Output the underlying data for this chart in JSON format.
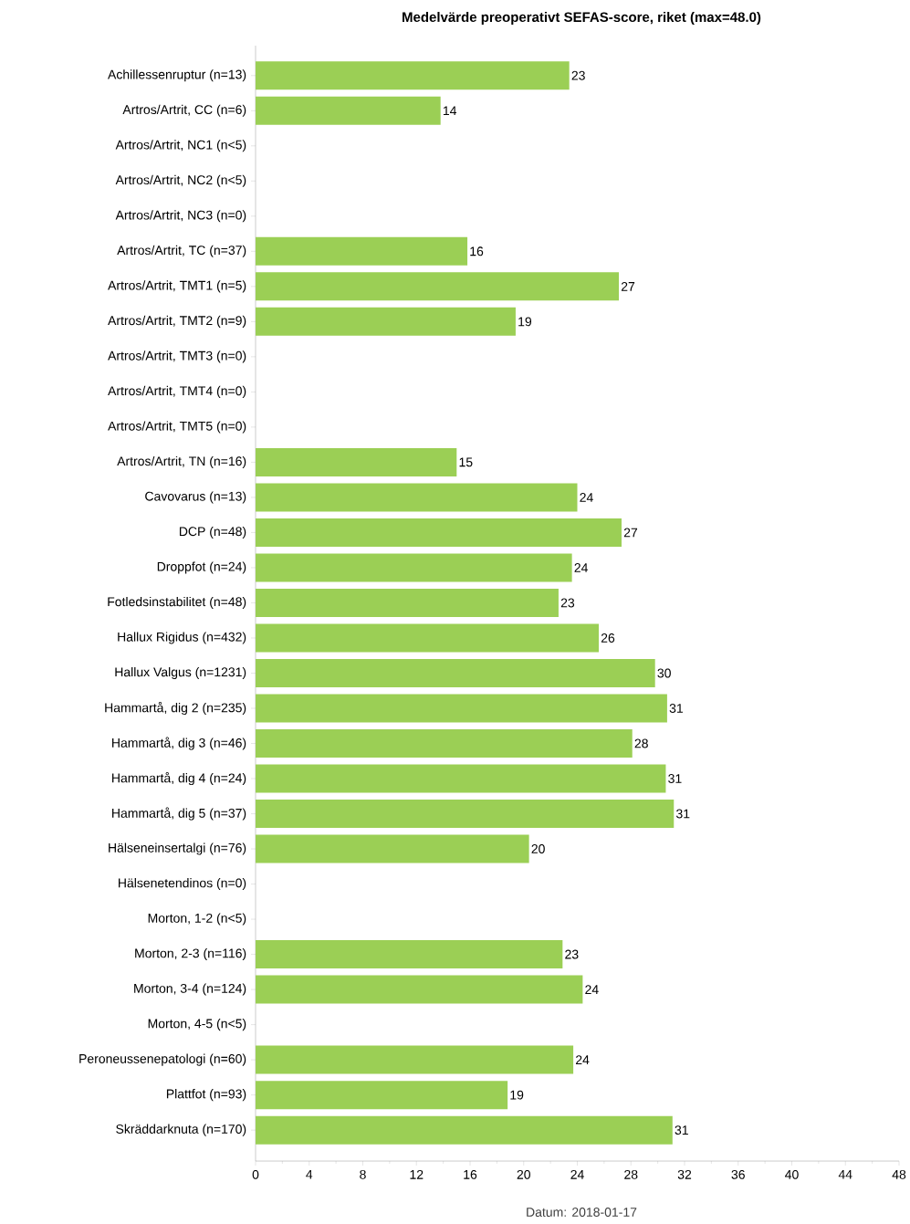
{
  "chart_data": {
    "type": "bar",
    "orientation": "horizontal",
    "title": "Medelvärde preoperativt SEFAS-score, riket (max=48.0)",
    "categories": [
      "Achillessenruptur (n=13)",
      "Artros/Artrit, CC (n=6)",
      "Artros/Artrit, NC1 (n<5)",
      "Artros/Artrit, NC2 (n<5)",
      "Artros/Artrit, NC3 (n=0)",
      "Artros/Artrit, TC (n=37)",
      "Artros/Artrit, TMT1 (n=5)",
      "Artros/Artrit, TMT2 (n=9)",
      "Artros/Artrit, TMT3 (n=0)",
      "Artros/Artrit, TMT4 (n=0)",
      "Artros/Artrit, TMT5 (n=0)",
      "Artros/Artrit, TN (n=16)",
      "Cavovarus (n=13)",
      "DCP (n=48)",
      "Droppfot (n=24)",
      "Fotledsinstabilitet (n=48)",
      "Hallux Rigidus (n=432)",
      "Hallux Valgus (n=1231)",
      "Hammartå, dig 2 (n=235)",
      "Hammartå, dig 3 (n=46)",
      "Hammartå, dig 4 (n=24)",
      "Hammartå, dig 5 (n=37)",
      "Hälseneinsertalgi (n=76)",
      "Hälsenetendinos (n=0)",
      "Morton, 1-2 (n<5)",
      "Morton, 2-3 (n=116)",
      "Morton, 3-4 (n=124)",
      "Morton, 4-5 (n<5)",
      "Peroneussenepatologi (n=60)",
      "Plattfot (n=93)",
      "Skräddarknuta (n=170)"
    ],
    "values": [
      23.4,
      13.8,
      null,
      null,
      null,
      15.8,
      27.1,
      19.4,
      null,
      null,
      null,
      15.0,
      24.0,
      27.3,
      23.6,
      22.6,
      25.6,
      29.8,
      30.7,
      28.1,
      30.6,
      31.2,
      20.4,
      null,
      null,
      22.9,
      24.4,
      null,
      23.7,
      18.8,
      31.1
    ],
    "value_labels": [
      "23",
      "14",
      null,
      null,
      null,
      "16",
      "27",
      "19",
      null,
      null,
      null,
      "15",
      "24",
      "27",
      "24",
      "23",
      "26",
      "30",
      "31",
      "28",
      "31",
      "31",
      "20",
      null,
      null,
      "23",
      "24",
      null,
      "24",
      "19",
      "31"
    ],
    "color": "#9bcf55",
    "xlim": [
      0,
      48
    ],
    "xticks": [
      0,
      4,
      8,
      12,
      16,
      20,
      24,
      28,
      32,
      36,
      40,
      44,
      48
    ],
    "grid": false,
    "annotations": [
      "Datum: 2018-01-17"
    ]
  }
}
